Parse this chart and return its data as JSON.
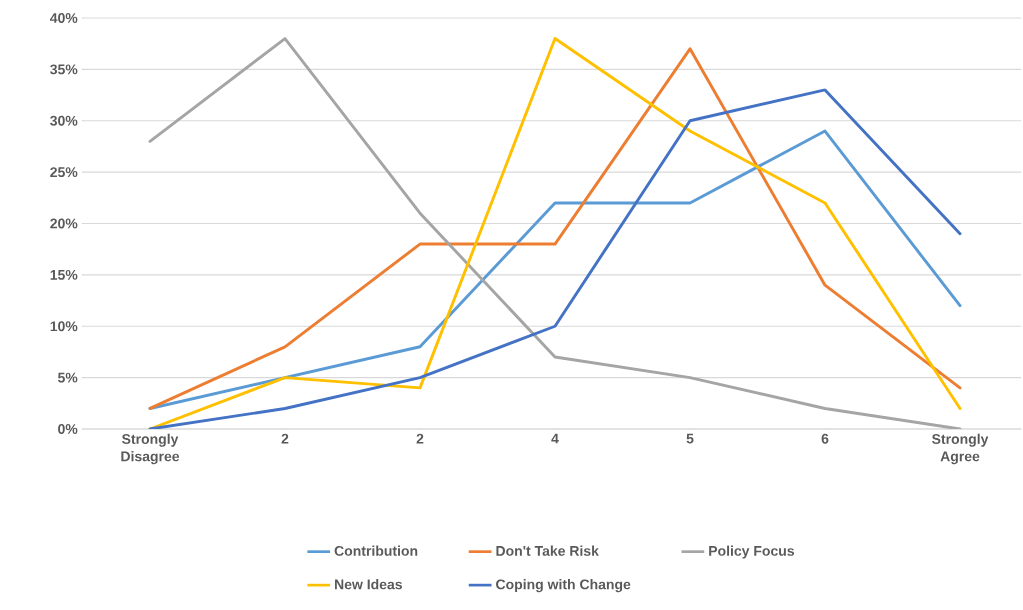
{
  "chart_data": {
    "type": "line",
    "categories": [
      "Strongly Disagree",
      "2",
      "2",
      "4",
      "5",
      "6",
      "Strongly Agree"
    ],
    "series": [
      {
        "name": "Contribution",
        "color": "#5b9bd5",
        "values": [
          2,
          5,
          8,
          22,
          22,
          29,
          12
        ]
      },
      {
        "name": "Don't Take Risk",
        "color": "#ed7d31",
        "values": [
          2,
          8,
          18,
          18,
          37,
          14,
          4
        ]
      },
      {
        "name": "Policy Focus",
        "color": "#a5a5a5",
        "values": [
          28,
          38,
          21,
          7,
          5,
          2,
          0
        ]
      },
      {
        "name": "New Ideas",
        "color": "#ffc000",
        "values": [
          0,
          5,
          4,
          38,
          29,
          22,
          2
        ]
      },
      {
        "name": "Coping with Change",
        "color": "#4472c4",
        "values": [
          0,
          2,
          5,
          10,
          30,
          33,
          19
        ]
      }
    ],
    "ylim": [
      0,
      40
    ],
    "yticks": [
      {
        "value": 0,
        "label": "0%"
      },
      {
        "value": 5,
        "label": "5%"
      },
      {
        "value": 10,
        "label": "10%"
      },
      {
        "value": 15,
        "label": "15%"
      },
      {
        "value": 20,
        "label": "20%"
      },
      {
        "value": 25,
        "label": "25%"
      },
      {
        "value": 30,
        "label": "30%"
      },
      {
        "value": 35,
        "label": "35%"
      },
      {
        "value": 40,
        "label": "40%"
      }
    ],
    "grid": "y",
    "legend": "bottom",
    "marker": "none",
    "line_style": "solid"
  }
}
